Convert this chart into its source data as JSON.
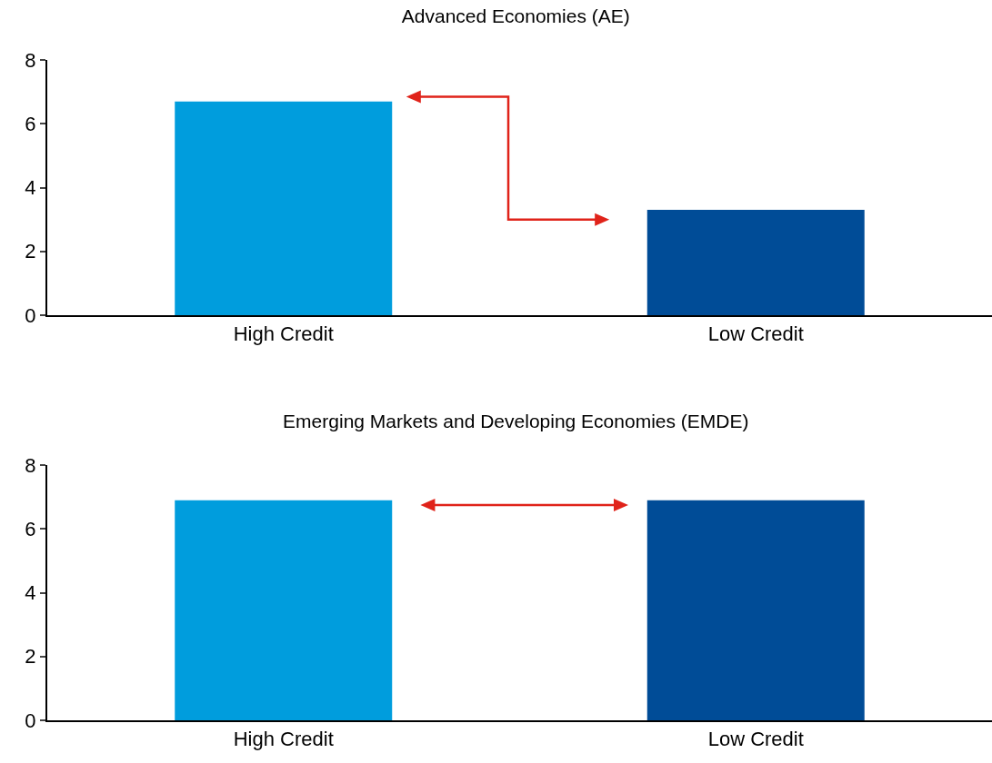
{
  "chart_data": [
    {
      "type": "bar",
      "title": "Advanced Economies (AE)",
      "categories": [
        "High Credit",
        "Low Credit"
      ],
      "values": [
        6.7,
        3.3
      ],
      "colors": [
        "#009ddd",
        "#004c97"
      ],
      "ylim": [
        0,
        8
      ],
      "yticks": [
        0,
        2,
        4,
        6,
        8
      ],
      "grid": false
    },
    {
      "type": "bar",
      "title": "Emerging Markets and Developing Economies (EMDE)",
      "categories": [
        "High Credit",
        "Low Credit"
      ],
      "values": [
        6.9,
        6.9
      ],
      "colors": [
        "#009ddd",
        "#004c97"
      ],
      "ylim": [
        0,
        8
      ],
      "yticks": [
        0,
        2,
        4,
        6,
        8
      ],
      "grid": false
    }
  ]
}
